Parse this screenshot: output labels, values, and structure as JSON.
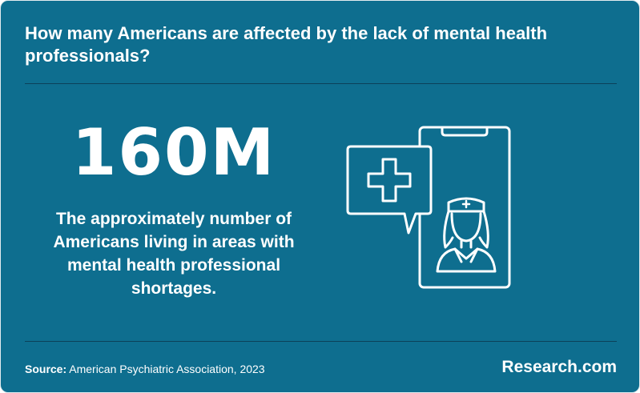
{
  "header": {
    "title": "How many Americans are affected by the lack of mental health professionals?"
  },
  "stat": {
    "value": "160M",
    "description": "The approximately number of Americans living in areas with mental health professional shortages."
  },
  "illustration": {
    "icons": [
      "phone-icon",
      "chat-bubble-icon",
      "medical-cross-icon",
      "nurse-icon"
    ]
  },
  "footer": {
    "source_label": "Source:",
    "source_text": "American Psychiatric Association, 2023",
    "brand": "Research.com"
  },
  "colors": {
    "background": "#0e6e8f",
    "text": "#ffffff",
    "divider": "#0a1e2d"
  }
}
